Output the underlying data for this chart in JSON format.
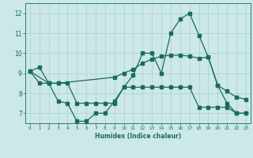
{
  "bg_color": "#cce8e8",
  "grid_color": "#aacfcf",
  "line_color": "#1a6b5a",
  "xlabel": "Humidex (Indice chaleur)",
  "xlim": [
    -0.5,
    23.5
  ],
  "ylim": [
    6.5,
    12.5
  ],
  "yticks": [
    7,
    8,
    9,
    10,
    11,
    12
  ],
  "xticks": [
    0,
    1,
    2,
    3,
    4,
    5,
    6,
    7,
    8,
    9,
    10,
    11,
    12,
    13,
    14,
    15,
    16,
    17,
    18,
    19,
    20,
    21,
    22,
    23
  ],
  "line1_x": [
    0,
    1,
    2,
    3,
    4,
    5,
    6,
    7,
    8,
    9,
    10,
    11,
    12,
    13,
    14,
    15,
    16,
    17,
    18,
    19,
    20,
    21,
    22,
    23
  ],
  "line1_y": [
    9.1,
    9.3,
    8.5,
    7.6,
    7.5,
    6.6,
    6.6,
    7.0,
    7.0,
    7.6,
    8.3,
    8.9,
    10.0,
    10.0,
    9.0,
    11.0,
    11.7,
    12.0,
    10.9,
    9.8,
    8.4,
    7.5,
    7.0,
    7.0
  ],
  "line2_x": [
    0,
    2,
    3,
    9,
    10,
    11,
    12,
    13,
    14,
    15,
    16,
    17,
    18,
    19,
    20,
    21,
    22,
    23
  ],
  "line2_y": [
    9.1,
    8.5,
    8.5,
    8.8,
    9.0,
    9.2,
    9.5,
    9.7,
    9.85,
    9.9,
    9.9,
    9.85,
    9.75,
    9.8,
    8.4,
    8.1,
    7.8,
    7.7
  ],
  "line3_x": [
    0,
    1,
    2,
    3,
    4,
    5,
    6,
    7,
    8,
    9,
    10,
    11,
    12,
    13,
    14,
    15,
    16,
    17,
    18,
    19,
    20,
    21,
    22,
    23
  ],
  "line3_y": [
    9.1,
    8.5,
    8.5,
    8.5,
    8.5,
    7.5,
    7.5,
    7.5,
    7.5,
    7.5,
    8.3,
    8.3,
    8.3,
    8.3,
    8.3,
    8.3,
    8.3,
    8.3,
    7.3,
    7.3,
    7.3,
    7.3,
    7.0,
    7.0
  ]
}
